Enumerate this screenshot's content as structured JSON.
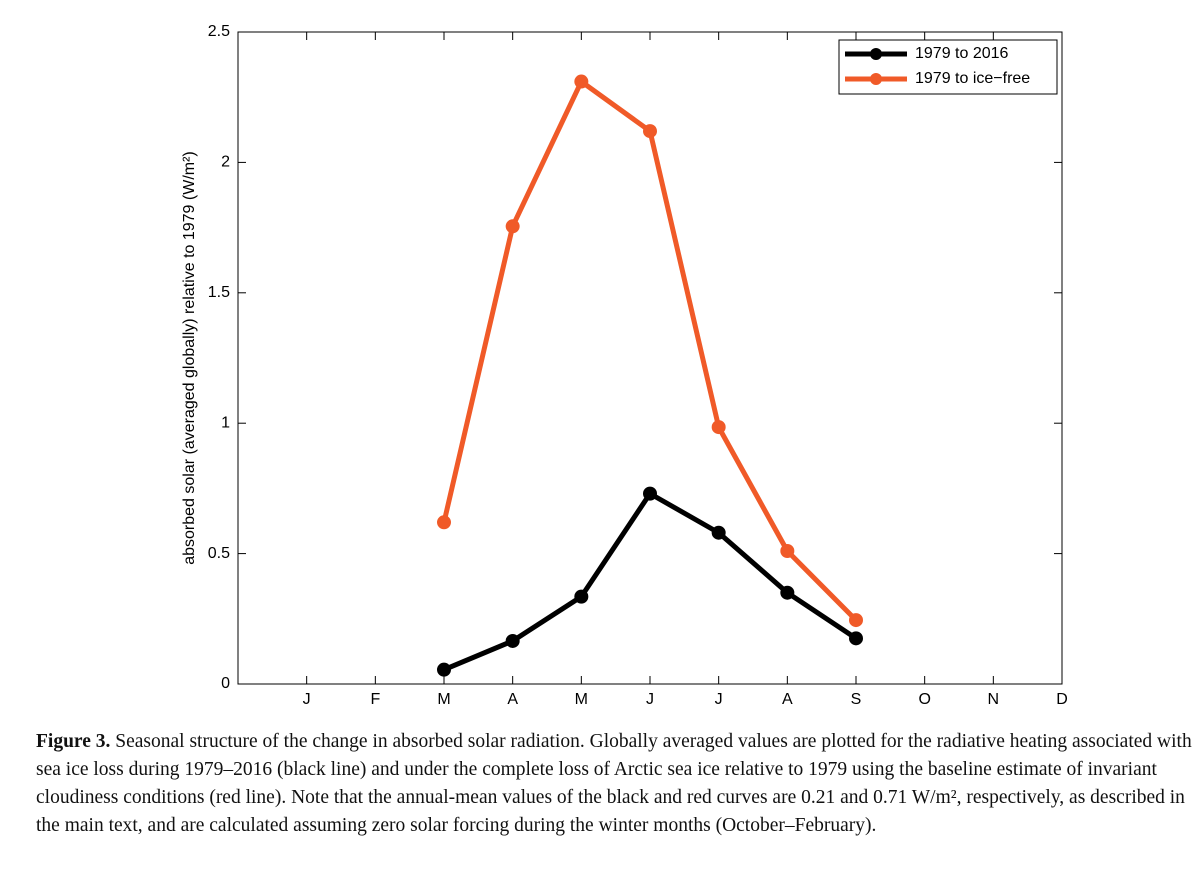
{
  "chart_data": {
    "type": "line",
    "y_label": "absorbed solar (averaged globally) relative to 1979 (W/m²)",
    "categories": [
      "J",
      "F",
      "M",
      "A",
      "M",
      "J",
      "J",
      "A",
      "S",
      "O",
      "N",
      "D"
    ],
    "series": [
      {
        "name": "1979 to 2016",
        "color": "#000000",
        "values": [
          null,
          null,
          0.055,
          0.165,
          0.335,
          0.73,
          0.58,
          0.35,
          0.175,
          null,
          null,
          null
        ]
      },
      {
        "name": "1979 to ice−free",
        "color": "#f05a28",
        "values": [
          null,
          null,
          0.62,
          1.755,
          2.31,
          2.12,
          0.985,
          0.51,
          0.245,
          null,
          null,
          null
        ]
      }
    ],
    "ylim": [
      0,
      2.5
    ],
    "yticks": [
      0,
      0.5,
      1,
      1.5,
      2,
      2.5
    ],
    "grid": false,
    "legend": "upper right"
  },
  "caption": {
    "label": "Figure 3.",
    "text": "Seasonal structure of the change in absorbed solar radiation. Globally averaged values are plotted for the radiative heating associated with sea ice loss during 1979–2016 (black line) and under the complete loss of Arctic sea ice relative to 1979 using the baseline estimate of invariant cloudiness conditions (red line). Note that the annual-mean values of the black and red curves are 0.21 and 0.71 W/m², respectively, as described in the main text, and are calculated assuming zero solar forcing during the winter months (October–February)."
  }
}
